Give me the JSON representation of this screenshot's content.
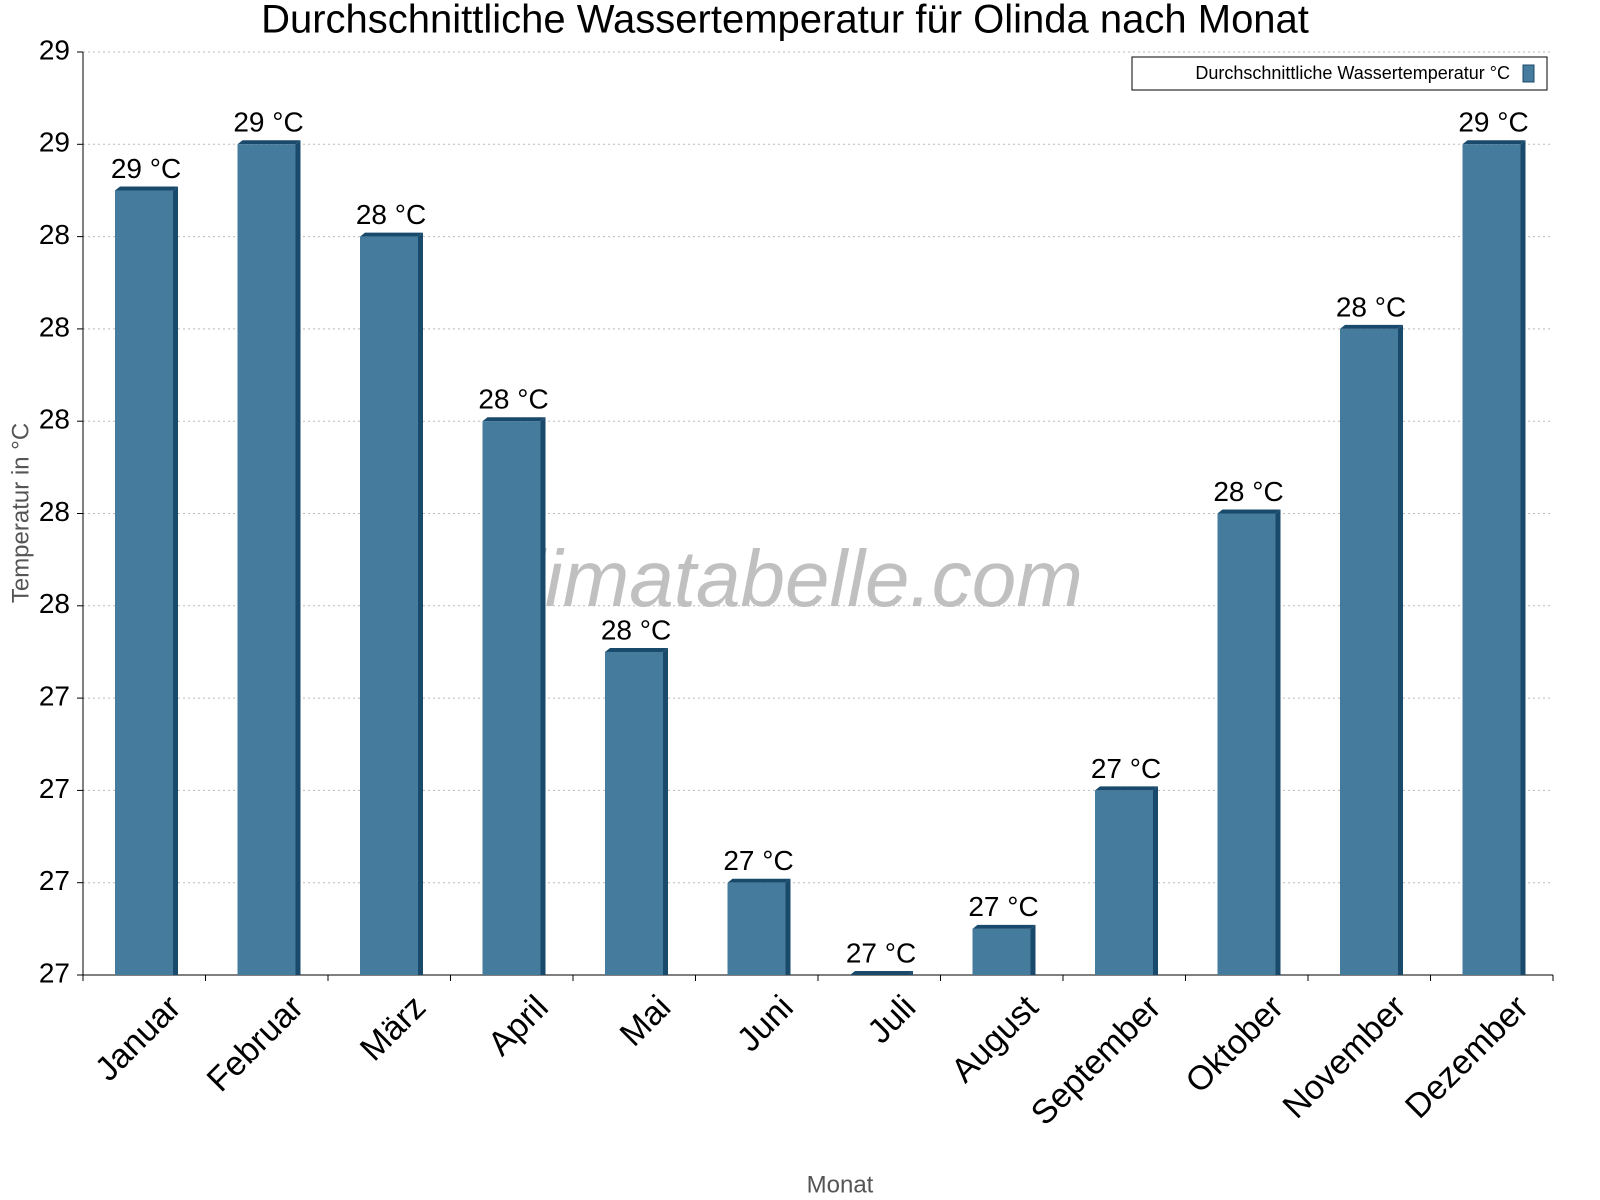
{
  "chart_data": {
    "type": "bar",
    "title": "Durchschnittliche Wassertemperatur für Olinda nach Monat",
    "watermark": "klimatabelle.com",
    "x_label": "Monat",
    "y_label": "Temperatur in °C",
    "categories": [
      "Januar",
      "Februar",
      "März",
      "April",
      "Mai",
      "Juni",
      "Juli",
      "August",
      "September",
      "Oktober",
      "November",
      "Dezember"
    ],
    "series": [
      {
        "name": "Durchschnittliche Wassertemperatur °C",
        "color": "#457b9d",
        "values": [
          28.5,
          28.6,
          28.4,
          28.0,
          27.5,
          27.0,
          26.8,
          26.9,
          27.2,
          27.8,
          28.2,
          28.6
        ],
        "value_labels": [
          "29 °C",
          "29 °C",
          "28 °C",
          "28 °C",
          "28 °C",
          "27 °C",
          "27 °C",
          "27 °C",
          "27 °C",
          "28 °C",
          "28 °C",
          "29 °C"
        ]
      }
    ],
    "ylim": [
      26.8,
      28.8
    ],
    "yticks": [
      {
        "value": 26.8,
        "label": "27"
      },
      27,
      {
        "value": 27.2,
        "label": "27"
      },
      {
        "value": 27.4,
        "label": "27"
      },
      {
        "value": 27.6,
        "label": "28"
      },
      {
        "value": 27.8,
        "label": "28"
      },
      28,
      {
        "value": 28.2,
        "label": "28"
      },
      {
        "value": 28.4,
        "label": "28"
      },
      {
        "value": 28.6,
        "label": "29"
      },
      {
        "value": 28.8,
        "label": "29"
      }
    ],
    "grid": true,
    "legend": "top-right"
  }
}
